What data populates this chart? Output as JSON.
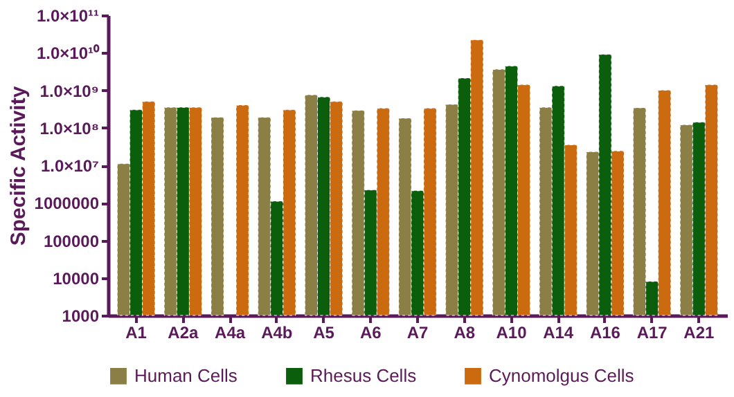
{
  "chart_data": {
    "type": "bar",
    "ylabel": "Specific Activity",
    "log": "y",
    "grid": false,
    "legend": "bottom",
    "categories": [
      "A1",
      "A2a",
      "A4a",
      "A4b",
      "A5",
      "A6",
      "A7",
      "A8",
      "A10",
      "A14",
      "A16",
      "A17",
      "A21"
    ],
    "ylim": [
      1000,
      100000000000
    ],
    "yticks": [
      1000,
      10000,
      100000,
      1000000,
      {
        "value": 10000000,
        "label": "1.0×10⁷"
      },
      {
        "value": 100000000,
        "label": "1.0×10⁸"
      },
      {
        "value": 1000000000,
        "label": "1.0×10⁹"
      },
      {
        "value": 10000000000,
        "label": "1.0×10¹⁰"
      },
      {
        "value": 100000000000,
        "label": "1.0×10¹¹"
      }
    ],
    "series": [
      {
        "name": "Human Cells",
        "color": "#8c7f45",
        "values": [
          11000000,
          350000000,
          190000000,
          190000000,
          750000000,
          290000000,
          180000000,
          420000000,
          3600000000,
          350000000,
          23000000,
          340000000,
          120000000
        ]
      },
      {
        "name": "Rhesus Cells",
        "color": "#0b5e0b",
        "values": [
          300000000,
          350000000,
          null,
          1100000,
          660000000,
          2200000,
          2100000,
          2100000000,
          4400000000,
          1300000000,
          9000000000,
          8000,
          140000000
        ]
      },
      {
        "name": "Cynomolgus Cells",
        "color": "#cc6a10",
        "values": [
          500000000,
          350000000,
          400000000,
          300000000,
          500000000,
          330000000,
          330000000,
          22000000000,
          1400000000,
          35000000,
          24000000,
          1000000000,
          1400000000
        ]
      }
    ]
  }
}
